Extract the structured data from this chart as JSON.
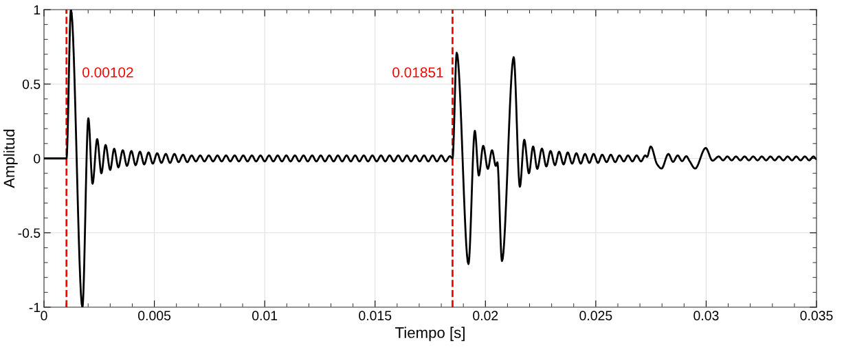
{
  "chart_data": {
    "type": "line",
    "xlabel": "Tiempo [s]",
    "ylabel": "Amplitud",
    "xlim": [
      0,
      0.035
    ],
    "ylim": [
      -1,
      1
    ],
    "xticks": [
      0,
      0.005,
      0.01,
      0.015,
      0.02,
      0.025,
      0.03,
      0.035
    ],
    "yticks": [
      -1,
      -0.5,
      0,
      0.5,
      1
    ],
    "grid": true,
    "line_style": "solid",
    "marker": "none",
    "ref_lines": [
      {
        "axis": "x",
        "value": 0.00102,
        "label": "0.00102",
        "color": "#ff0000",
        "line_style": "dashed"
      },
      {
        "axis": "x",
        "value": 0.01851,
        "label": "0.01851",
        "color": "#ff0000",
        "line_style": "dashed"
      }
    ],
    "series": [
      {
        "color": "#000000",
        "x": [
          0,
          0.00102,
          0.00122,
          0.00174,
          0.00201,
          0.0022,
          0.00241,
          0.0026,
          0.00279,
          0.003,
          0.00318,
          0.00337,
          0.00357,
          0.00376,
          0.00396,
          0.00415,
          0.00435,
          0.00454,
          0.00474,
          0.00493,
          0.00513,
          0.00532,
          0.00552,
          0.00571,
          0.00591,
          0.0061,
          0.0063,
          0.00649,
          0.00669,
          0.00688,
          0.00708,
          0.00727,
          0.00747,
          0.00766,
          0.00786,
          0.00805,
          0.00825,
          0.00844,
          0.00864,
          0.00883,
          0.00903,
          0.00922,
          0.00942,
          0.00961,
          0.00981,
          0.01,
          0.0102,
          0.01039,
          0.01059,
          0.01078,
          0.01098,
          0.01117,
          0.01137,
          0.01156,
          0.01176,
          0.01195,
          0.01215,
          0.01234,
          0.01254,
          0.01273,
          0.01293,
          0.01312,
          0.01332,
          0.01351,
          0.01371,
          0.0139,
          0.0141,
          0.01429,
          0.01449,
          0.01468,
          0.01488,
          0.01507,
          0.01527,
          0.01546,
          0.01566,
          0.01585,
          0.01605,
          0.01624,
          0.01644,
          0.01663,
          0.01683,
          0.01702,
          0.01722,
          0.01741,
          0.01761,
          0.0178,
          0.018,
          0.01819,
          0.01839,
          0.01851,
          0.0187,
          0.01923,
          0.01952,
          0.0197,
          0.0199,
          0.02011,
          0.0203,
          0.02047,
          0.02054,
          0.02075,
          0.02128,
          0.02156,
          0.02176,
          0.02197,
          0.02216,
          0.02235,
          0.02256,
          0.02276,
          0.02295,
          0.02315,
          0.02334,
          0.02354,
          0.02373,
          0.02393,
          0.02412,
          0.02432,
          0.02451,
          0.02471,
          0.0249,
          0.0251,
          0.02529,
          0.02549,
          0.02568,
          0.02588,
          0.02607,
          0.02627,
          0.02646,
          0.02666,
          0.02685,
          0.02705,
          0.02724,
          0.02732,
          0.02749,
          0.02778,
          0.02798,
          0.02829,
          0.0285,
          0.02871,
          0.02891,
          0.0291,
          0.02925,
          0.0295,
          0.02998,
          0.03029,
          0.03057,
          0.03077,
          0.03096,
          0.03116,
          0.03135,
          0.03155,
          0.03174,
          0.03194,
          0.03213,
          0.03233,
          0.03252,
          0.03272,
          0.03291,
          0.03311,
          0.0333,
          0.0335,
          0.03369,
          0.03389,
          0.03408,
          0.03428,
          0.03447,
          0.03467,
          0.03486,
          0.035
        ],
        "values": [
          0,
          0,
          1,
          -1,
          0.27,
          -0.17,
          0.13,
          -0.1,
          0.09,
          -0.077,
          0.065,
          -0.06,
          0.055,
          -0.05,
          0.05,
          -0.045,
          0.045,
          -0.04,
          0.04,
          -0.035,
          0.035,
          -0.03,
          0.03,
          -0.03,
          0.03,
          -0.025,
          0.025,
          -0.025,
          0.02,
          -0.02,
          0.02,
          -0.02,
          0.02,
          -0.02,
          0.02,
          -0.02,
          0.02,
          -0.02,
          0.02,
          -0.02,
          0.02,
          -0.02,
          0.02,
          -0.02,
          0.02,
          -0.02,
          0.02,
          -0.02,
          0.02,
          -0.02,
          0.02,
          -0.02,
          0.02,
          -0.02,
          0.02,
          -0.02,
          0.02,
          -0.02,
          0.02,
          -0.02,
          0.02,
          -0.02,
          0.02,
          -0.02,
          0.02,
          -0.02,
          0.02,
          -0.02,
          0.02,
          -0.02,
          0.02,
          -0.02,
          0.02,
          -0.02,
          0.02,
          -0.02,
          0.02,
          -0.02,
          0.02,
          -0.02,
          0.02,
          -0.02,
          0.02,
          -0.02,
          0.02,
          -0.02,
          0.02,
          -0.02,
          0.015,
          0,
          0.71,
          -0.71,
          0.185,
          -0.115,
          0.085,
          -0.07,
          0.055,
          -0.05,
          -0.026,
          -0.69,
          0.68,
          -0.19,
          0.125,
          -0.1,
          0.08,
          -0.07,
          0.066,
          -0.054,
          0.05,
          -0.045,
          0.045,
          -0.04,
          0.04,
          -0.035,
          0.035,
          -0.035,
          0.03,
          -0.03,
          0.03,
          -0.03,
          0.025,
          -0.025,
          0.025,
          -0.025,
          0.02,
          -0.02,
          0.02,
          -0.02,
          0.02,
          -0.02,
          0.02,
          0.01,
          0.08,
          -0.04,
          -0.068,
          0.03,
          -0.023,
          0.02,
          -0.018,
          0.015,
          -0.018,
          -0.068,
          0.07,
          -0.015,
          0.013,
          -0.013,
          0.013,
          -0.013,
          0.013,
          -0.013,
          0.013,
          -0.013,
          0.013,
          -0.013,
          0.013,
          -0.013,
          0.013,
          -0.013,
          0.013,
          -0.013,
          0.013,
          -0.013,
          0.013,
          -0.013,
          0.013,
          -0.013,
          0.013,
          -0.005
        ]
      }
    ]
  }
}
